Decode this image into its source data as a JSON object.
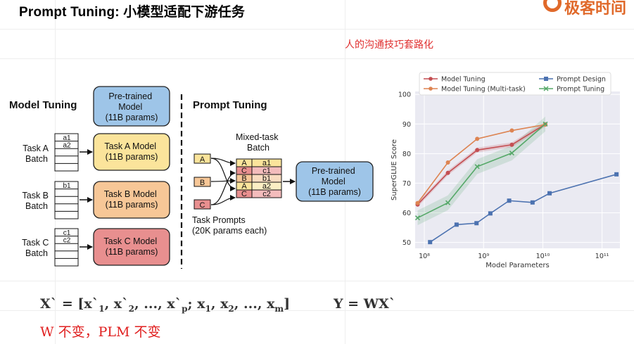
{
  "slide": {
    "title": "Prompt Tuning: 小模型适配下游任务",
    "logo_text": "极客时间",
    "subtitle": "人的沟通技巧套路化",
    "equation_x": "X` = [x`1, x`2, ..., x`p; x1, x2, ..., xm]",
    "equation_x_parts": {
      "lhs": "X` = [x`",
      "s1": "1",
      "p2": ", x`",
      "s2": "2",
      "p3": ", ..., x`",
      "s3": "p",
      "p4": "; x",
      "s4": "1",
      "p5": ", x",
      "s5": "2",
      "p6": ", ..., x",
      "s6": "m",
      "p7": "]"
    },
    "equation_y": "Y = WX`",
    "note": "W 不变，PLM 不变"
  },
  "diagram": {
    "model_tuning_label": "Model Tuning",
    "prompt_tuning_label": "Prompt Tuning",
    "pretrained_top": [
      "Pre-trained",
      "Model",
      "(11B params)"
    ],
    "tasks": [
      {
        "label": [
          "Task A",
          "Batch"
        ],
        "rows": [
          "a1",
          "a2"
        ],
        "model": [
          "Task A Model",
          "(11B params)"
        ],
        "color": "#fbe49b"
      },
      {
        "label": [
          "Task B",
          "Batch"
        ],
        "rows": [
          "b1"
        ],
        "model": [
          "Task B Model",
          "(11B params)"
        ],
        "color": "#f7c797"
      },
      {
        "label": [
          "Task C",
          "Batch"
        ],
        "rows": [
          "c1",
          "c2"
        ],
        "model": [
          "Task C Model",
          "(11B params)"
        ],
        "color": "#e88f8f"
      }
    ],
    "mixed_task_label": [
      "Mixed-task",
      "Batch"
    ],
    "prompts": [
      "A",
      "B",
      "C"
    ],
    "mixed_rows": [
      [
        "A",
        "a1"
      ],
      [
        "C",
        "c1"
      ],
      [
        "B",
        "b1"
      ],
      [
        "A",
        "a2"
      ],
      [
        "C",
        "c2"
      ]
    ],
    "pretrained_right": [
      "Pre-trained",
      "Model",
      "(11B params)"
    ],
    "task_prompts_label": [
      "Task Prompts",
      "(20K params each)"
    ],
    "colors": {
      "prompt_a": "#fbe49b",
      "prompt_b": "#f7c797",
      "prompt_c": "#e88f8f",
      "pretrained": "#9ec5e8"
    }
  },
  "chart_data": {
    "type": "line",
    "xlabel": "Model Parameters",
    "ylabel": "SuperGLUE Score",
    "xscale": "log",
    "xlim": [
      70000000.0,
      200000000000.0
    ],
    "ylim": [
      48,
      101
    ],
    "yticks": [
      50,
      60,
      70,
      80,
      90,
      100
    ],
    "xticks": [
      {
        "value": 100000000.0,
        "label": "10⁸"
      },
      {
        "value": 1000000000.0,
        "label": "10⁹"
      },
      {
        "value": 10000000000.0,
        "label": "10¹⁰"
      },
      {
        "value": 100000000000.0,
        "label": "10¹¹"
      }
    ],
    "legend_placement": "top",
    "grid": true,
    "series": [
      {
        "name": "Model Tuning",
        "color": "#c44e52",
        "marker": "circle",
        "x": [
          77000000.0,
          250000000.0,
          780000000.0,
          3000000000.0,
          11000000000.0
        ],
        "y": [
          62.8,
          73.5,
          81.2,
          83,
          89.9
        ]
      },
      {
        "name": "Model Tuning (Multi-task)",
        "color": "#dd8452",
        "marker": "circle",
        "x": [
          77000000.0,
          250000000.0,
          780000000.0,
          3000000000.0,
          11000000000.0
        ],
        "y": [
          63.3,
          77,
          85,
          87.8,
          89.8
        ]
      },
      {
        "name": "Prompt Design",
        "color": "#4c72b0",
        "marker": "square",
        "x": [
          125000000.0,
          350000000.0,
          760000000.0,
          1300000000.0,
          2700000000.0,
          6700000000.0,
          13000000000.0,
          175000000000.0
        ],
        "y": [
          50.1,
          56,
          56.5,
          59.8,
          64.1,
          63.5,
          66.6,
          73
        ]
      },
      {
        "name": "Prompt Tuning",
        "color": "#55a868",
        "marker": "x",
        "x": [
          77000000.0,
          250000000.0,
          780000000.0,
          3000000000.0,
          11000000000.0
        ],
        "y": [
          58.3,
          63.4,
          75.6,
          80.2,
          90
        ]
      }
    ]
  }
}
